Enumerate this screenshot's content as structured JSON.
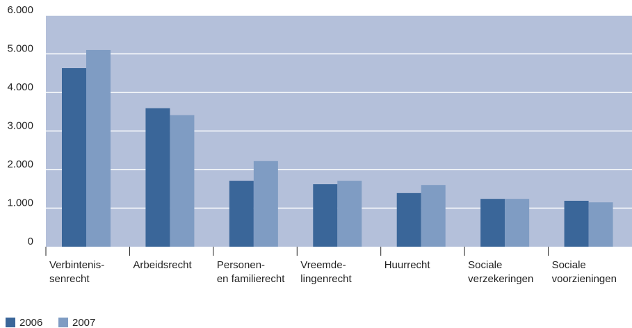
{
  "chart_data": {
    "type": "bar",
    "categories": [
      [
        "Verbintenis-",
        "senrecht"
      ],
      [
        "Arbeidsrecht"
      ],
      [
        "Personen-",
        "en familierecht"
      ],
      [
        "Vreemde-",
        "lingenrecht"
      ],
      [
        "Huurrecht"
      ],
      [
        "Sociale",
        "verzekeringen"
      ],
      [
        "Sociale",
        "voorzieningen"
      ]
    ],
    "series": [
      {
        "name": "2006",
        "color": "#3a6699",
        "values": [
          4630,
          3590,
          1710,
          1620,
          1390,
          1240,
          1190
        ]
      },
      {
        "name": "2007",
        "color": "#7f9cc3",
        "values": [
          5100,
          3410,
          2220,
          1710,
          1600,
          1240,
          1150
        ]
      }
    ],
    "ylim": [
      0,
      6000
    ],
    "yticks": [
      0,
      {
        "value": 1000,
        "label": "1.000"
      },
      {
        "value": 2000,
        "label": "2.000"
      },
      {
        "value": 3000,
        "label": "3.000"
      },
      {
        "value": 4000,
        "label": "4.000"
      },
      {
        "value": 5000,
        "label": "5.000"
      },
      {
        "value": 6000,
        "label": "6.000"
      }
    ],
    "grid": true,
    "plot_background": "#b4c0da",
    "legend": "bottom-left"
  }
}
